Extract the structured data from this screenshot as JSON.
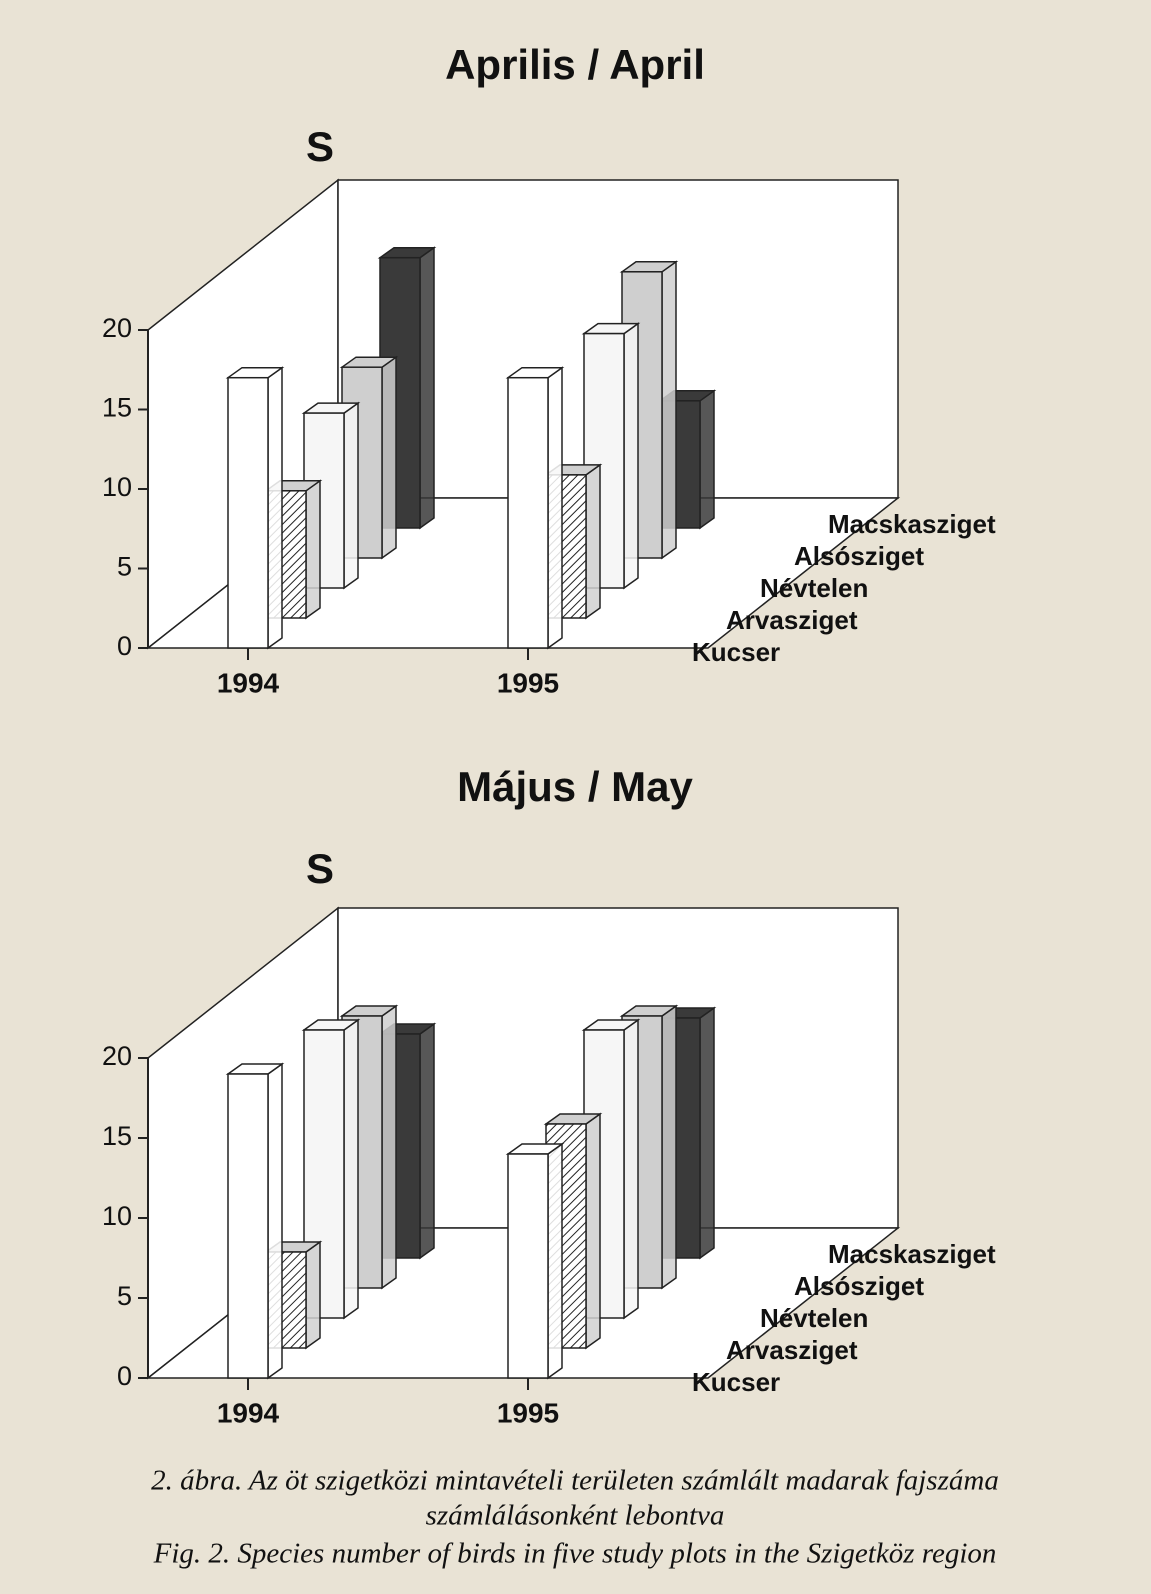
{
  "chart_data": [
    {
      "type": "bar",
      "title": "Aprilis / April",
      "ylabel": "S",
      "categories": [
        "1994",
        "1995"
      ],
      "series": [
        {
          "name": "Kucser",
          "color": "#ffffff",
          "values": [
            17,
            17
          ]
        },
        {
          "name": "Arvasziget",
          "color": "#d0d0d0",
          "hatch": true,
          "values": [
            8,
            9
          ]
        },
        {
          "name": "Névtelen",
          "color": "#f6f6f6",
          "values": [
            11,
            16
          ]
        },
        {
          "name": "Alsósziget",
          "color": "#cfcfcf",
          "values": [
            12,
            18
          ]
        },
        {
          "name": "Macskasziget",
          "color": "#3a3a3a",
          "values": [
            17,
            8
          ]
        }
      ],
      "ylim": [
        0,
        20
      ],
      "yticks": [
        0,
        5,
        10,
        15,
        20
      ]
    },
    {
      "type": "bar",
      "title": "Május / May",
      "ylabel": "S",
      "categories": [
        "1994",
        "1995"
      ],
      "series": [
        {
          "name": "Kucser",
          "color": "#ffffff",
          "values": [
            19,
            14
          ]
        },
        {
          "name": "Arvasziget",
          "color": "#d0d0d0",
          "hatch": true,
          "values": [
            6,
            14
          ]
        },
        {
          "name": "Névtelen",
          "color": "#f6f6f6",
          "values": [
            18,
            18
          ]
        },
        {
          "name": "Alsósziget",
          "color": "#cfcfcf",
          "values": [
            17,
            17
          ]
        },
        {
          "name": "Macskasziget",
          "color": "#3a3a3a",
          "values": [
            14,
            15
          ]
        }
      ],
      "ylim": [
        0,
        20
      ],
      "yticks": [
        0,
        5,
        10,
        15,
        20
      ]
    }
  ],
  "caption": {
    "line1": "2. ábra. Az öt szigetközi mintavételi területen számlált madarak fajszáma",
    "line2": "számlálásonként lebontva",
    "line3": "Fig. 2. Species number of birds in five study plots in the Szigetköz region"
  }
}
